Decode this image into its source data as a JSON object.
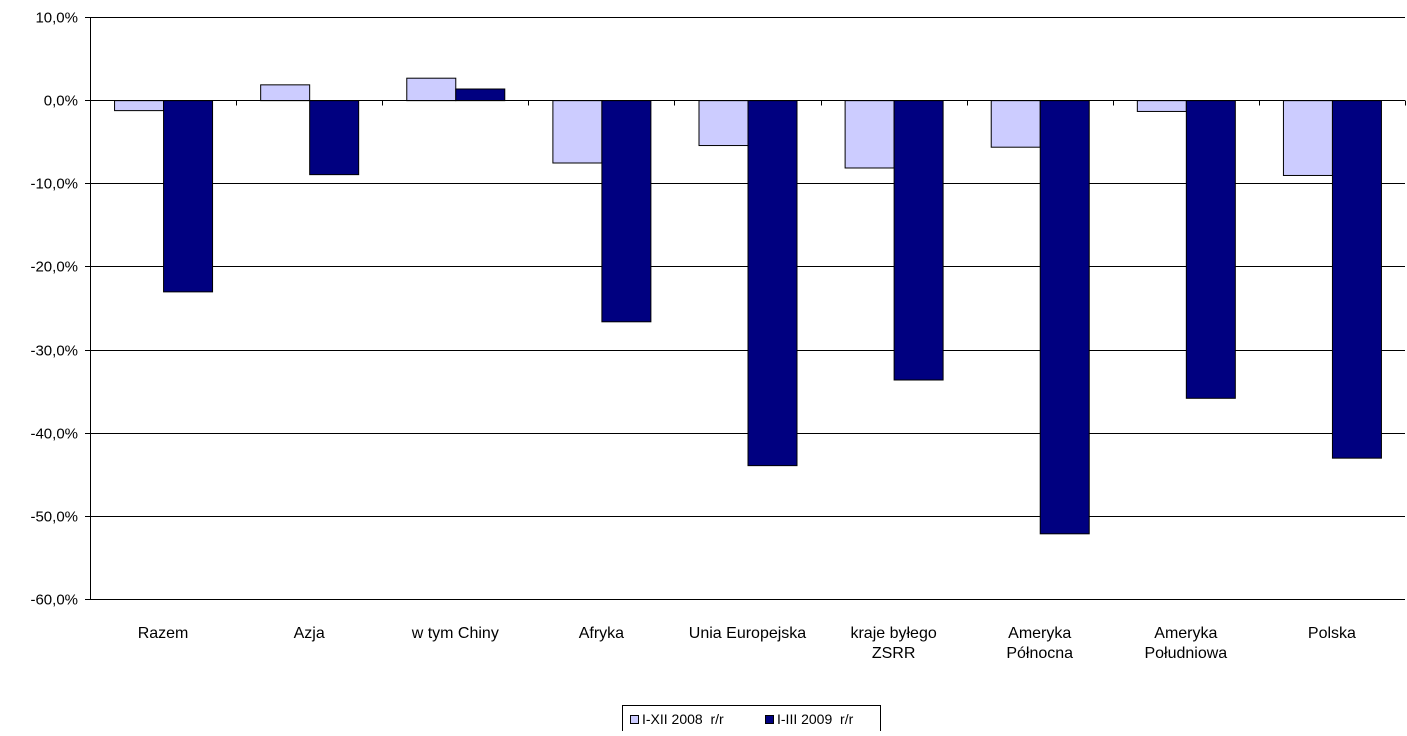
{
  "chart_data": {
    "type": "bar",
    "categories": [
      [
        "Razem"
      ],
      [
        "Azja"
      ],
      [
        "w tym Chiny"
      ],
      [
        "Afryka"
      ],
      [
        "Unia Europejska"
      ],
      [
        "kraje byłego",
        "ZSRR"
      ],
      [
        "Ameryka",
        "Północna"
      ],
      [
        "Ameryka",
        "Południowa"
      ],
      [
        "Polska"
      ]
    ],
    "series": [
      {
        "name": "I-XII 2008  r/r",
        "color": "#ccccff",
        "values": [
          -1.2,
          1.9,
          2.7,
          -7.5,
          -5.4,
          -8.1,
          -5.6,
          -1.3,
          -9.0
        ]
      },
      {
        "name": "I-III 2009  r/r",
        "color": "#000080",
        "values": [
          -23.0,
          -8.9,
          1.4,
          -26.6,
          -43.9,
          -33.6,
          -52.1,
          -35.8,
          -43.0
        ]
      }
    ],
    "ylim": [
      -60,
      10
    ],
    "yticks": [
      10,
      0,
      -10,
      -20,
      -30,
      -40,
      -50,
      -60
    ],
    "ytick_labels": [
      "10,0%",
      "0,0%",
      "-10,0%",
      "-20,0%",
      "-30,0%",
      "-40,0%",
      "-50,0%",
      "-60,0%"
    ],
    "grid": true,
    "legend_position": "bottom-center",
    "title": "",
    "xlabel": "",
    "ylabel": ""
  }
}
